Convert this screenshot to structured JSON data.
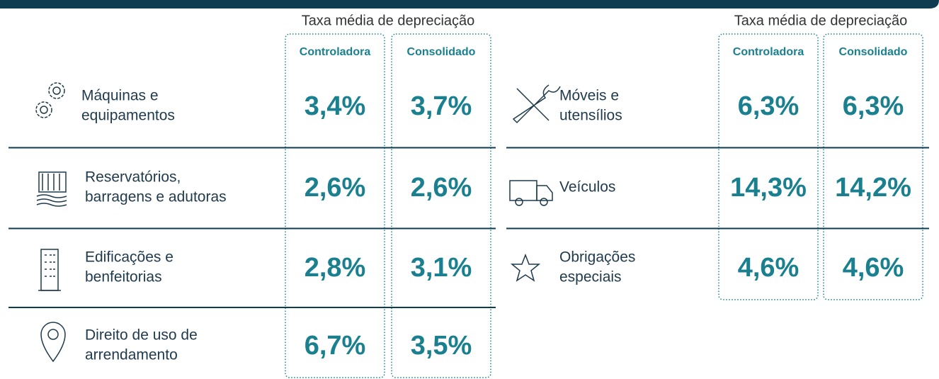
{
  "panels": [
    {
      "header": "Taxa média de depreciação",
      "columns": [
        "Controladora",
        "Consolidado"
      ],
      "rows": [
        {
          "label": [
            "Máquinas e",
            "equipamentos"
          ],
          "values": [
            "3,4%",
            "3,7%"
          ]
        },
        {
          "label": [
            "Reservatórios,",
            "barragens e adutoras"
          ],
          "values": [
            "2,6%",
            "2,6%"
          ]
        },
        {
          "label": [
            "Edificações e",
            "benfeitorias"
          ],
          "values": [
            "2,8%",
            "3,1%"
          ]
        },
        {
          "label": [
            "Direito de uso de",
            "arrendamento"
          ],
          "values": [
            "6,7%",
            "3,5%"
          ]
        }
      ]
    },
    {
      "header": "Taxa média de depreciação",
      "columns": [
        "Controladora",
        "Consolidado"
      ],
      "rows": [
        {
          "label": [
            "Móveis e",
            "utensílios"
          ],
          "values": [
            "6,3%",
            "6,3%"
          ]
        },
        {
          "label": [
            "Veículos"
          ],
          "values": [
            "14,3%",
            "14,2%"
          ]
        },
        {
          "label": [
            "Obrigações",
            "especiais"
          ],
          "values": [
            "4,6%",
            "4,6%"
          ]
        }
      ]
    }
  ]
}
